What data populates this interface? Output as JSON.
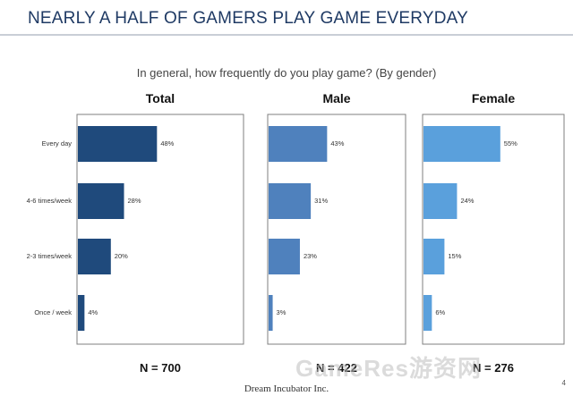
{
  "header": {
    "title": "NEARLY A HALF OF GAMERS PLAY GAME EVERYDAY"
  },
  "subtitle": "In general, how frequently do you play game? (By gender)",
  "chart_data": {
    "type": "bar",
    "orientation": "horizontal",
    "categories": [
      "Every day",
      "4-6 times/week",
      "2-3 times/week",
      "Once / week"
    ],
    "xlim": [
      0,
      100
    ],
    "grid": false,
    "panels": [
      {
        "title": "Total",
        "n_label": "N = 700",
        "values": [
          48,
          28,
          20,
          4
        ],
        "color": "#1f4a7c"
      },
      {
        "title": "Male",
        "n_label": "N = 422",
        "values": [
          43,
          31,
          23,
          3
        ],
        "color": "#4f81bd"
      },
      {
        "title": "Female",
        "n_label": "N = 276",
        "values": [
          55,
          24,
          15,
          6
        ],
        "color": "#5aa0dc"
      }
    ]
  },
  "footer": {
    "company": "Dream Incubator Inc.",
    "page_number": "4"
  },
  "watermark": "GameRes游资网"
}
